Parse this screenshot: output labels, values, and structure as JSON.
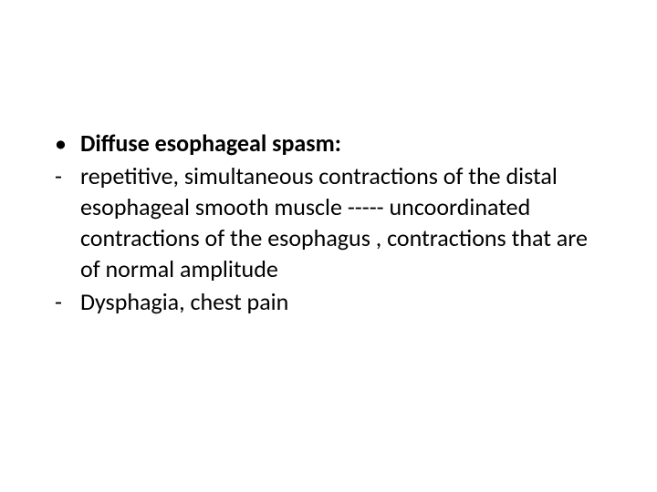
{
  "slide": {
    "background_color": "#ffffff",
    "text_color": "#000000",
    "font_family": "Calibri",
    "body_fontsize_pt": 20,
    "items": [
      {
        "marker": "bullet",
        "bold": true,
        "text": "Diffuse esophageal spasm:"
      },
      {
        "marker": "dash",
        "bold": false,
        "text": "repetitive, simultaneous contractions of the distal esophageal smooth muscle ----- uncoordinated contractions of the esophagus , contractions that are of normal amplitude"
      },
      {
        "marker": "dash",
        "bold": false,
        "text": "Dysphagia, chest pain"
      }
    ],
    "markers": {
      "bullet_glyph": "•",
      "dash_glyph": "-"
    }
  }
}
